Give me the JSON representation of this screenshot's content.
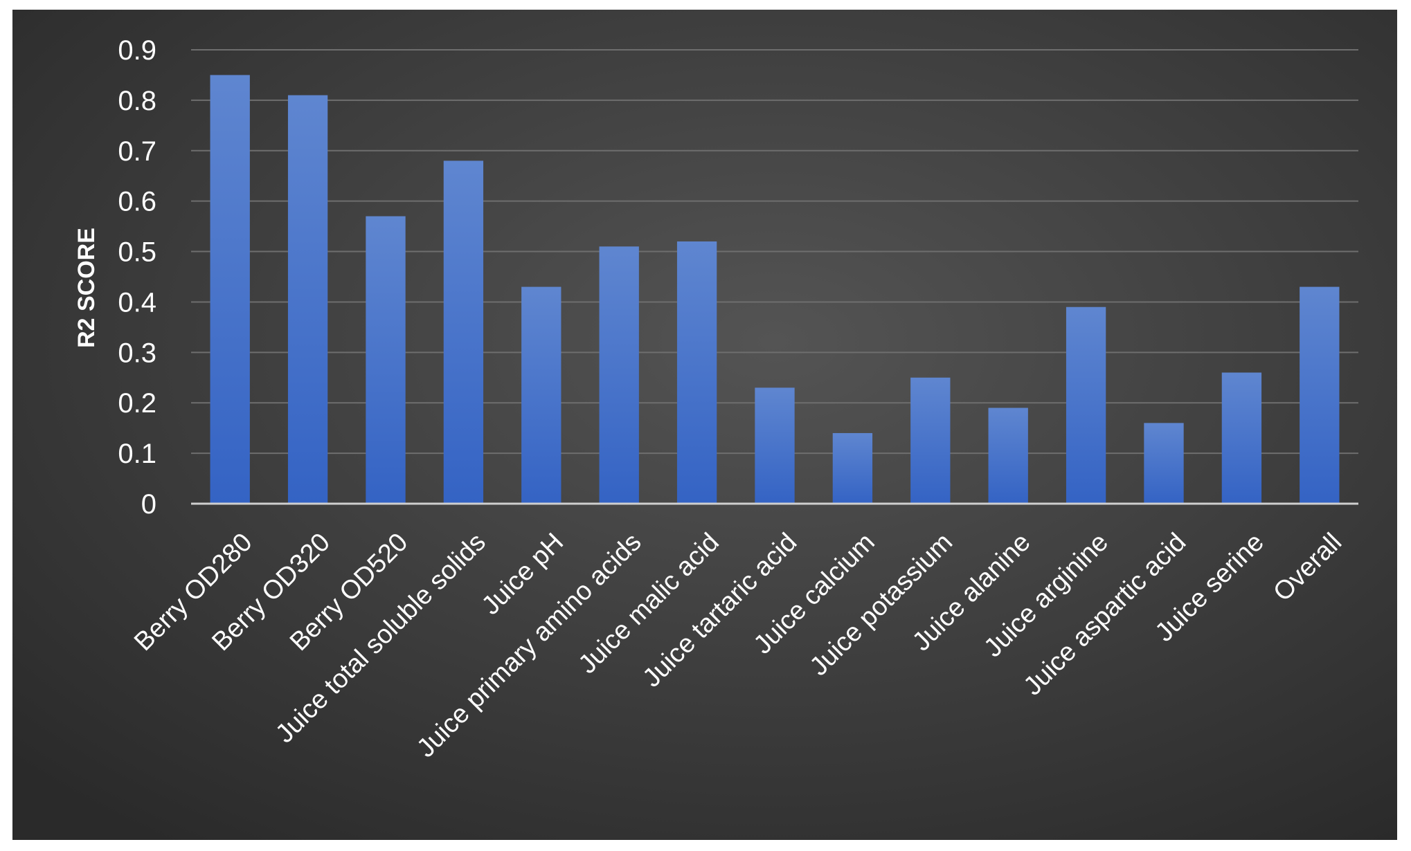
{
  "chart_data": {
    "type": "bar",
    "title": "",
    "xlabel": "",
    "ylabel": "R2 SCORE",
    "ylim": [
      0,
      0.9
    ],
    "yticks": [
      "0",
      "0.1",
      "0.2",
      "0.3",
      "0.4",
      "0.5",
      "0.6",
      "0.7",
      "0.8",
      "0.9"
    ],
    "grid": true,
    "legend": "none",
    "categories": [
      "Berry OD280",
      "Berry OD320",
      "Berry OD520",
      "Juice total soluble solids",
      "Juice pH",
      "Juice primary amino acids",
      "Juice malic acid",
      "Juice tartaric acid",
      "Juice calcium",
      "Juice potassium",
      "Juice alanine",
      "Juice arginine",
      "Juice aspartic acid",
      "Juice serine",
      "Overall"
    ],
    "values": [
      0.85,
      0.81,
      0.57,
      0.68,
      0.43,
      0.51,
      0.52,
      0.23,
      0.14,
      0.25,
      0.19,
      0.39,
      0.16,
      0.26,
      0.43
    ],
    "colors": {
      "bar_top": "#5f86d0",
      "bar_bottom": "#3463c4",
      "background_center": "#545454",
      "background_edge": "#2a2a2a",
      "gridline": "#6e6e6e",
      "axis": "#cfcfcf",
      "text": "#ffffff"
    }
  }
}
